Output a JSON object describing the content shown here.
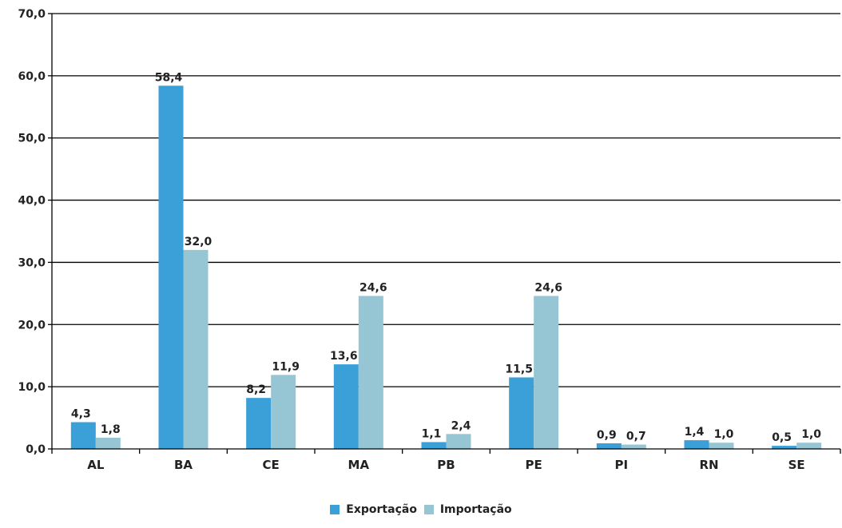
{
  "chart_data": {
    "type": "bar",
    "categories": [
      "AL",
      "BA",
      "CE",
      "MA",
      "PB",
      "PE",
      "PI",
      "RN",
      "SE"
    ],
    "series": [
      {
        "name": "Exportação",
        "values": [
          4.3,
          58.4,
          8.2,
          13.6,
          1.1,
          11.5,
          0.9,
          1.4,
          0.5
        ],
        "labels": [
          "4,3",
          "58,4",
          "8,2",
          "13,6",
          "1,1",
          "11,5",
          "0,9",
          "1,4",
          "0,5"
        ],
        "color": "#3b9fd8"
      },
      {
        "name": "Importação",
        "values": [
          1.8,
          32.0,
          11.9,
          24.6,
          2.4,
          24.6,
          0.7,
          1.0,
          1.0
        ],
        "labels": [
          "1,8",
          "32,0",
          "11,9",
          "24,6",
          "2,4",
          "24,6",
          "0,7",
          "1,0",
          "1,0"
        ],
        "color": "#96c6d4"
      }
    ],
    "ylim": [
      0,
      70
    ],
    "yticks": [
      0,
      10,
      20,
      30,
      40,
      50,
      60,
      70
    ],
    "ytick_labels": [
      "0,0",
      "10,0",
      "20,0",
      "30,0",
      "40,0",
      "50,0",
      "60,0",
      "70,0"
    ],
    "grid": true,
    "legend_position": "bottom-center"
  }
}
